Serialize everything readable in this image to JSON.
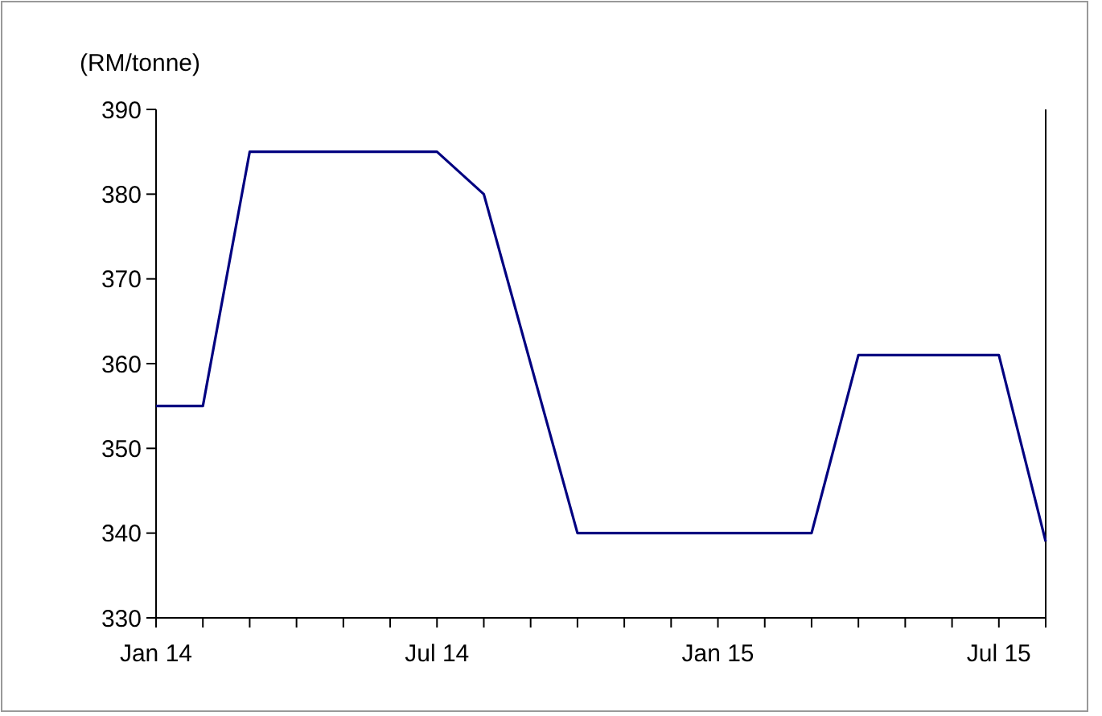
{
  "chart_data": {
    "type": "line",
    "ylabel": "(RM/tonne)",
    "categories": [
      "Jan 14",
      null,
      null,
      null,
      null,
      null,
      "Jul 14",
      null,
      null,
      null,
      null,
      null,
      "Jan 15",
      null,
      null,
      null,
      null,
      null,
      "Jul 15",
      null
    ],
    "series": [
      {
        "color": "#000080",
        "values": [
          355,
          355,
          385,
          385,
          385,
          385,
          385,
          380,
          360,
          340,
          340,
          340,
          340,
          340,
          340,
          361,
          361,
          361,
          361,
          339
        ]
      }
    ],
    "ylim": [
      330,
      390
    ],
    "yticks": [
      330,
      340,
      350,
      360,
      370,
      380,
      390
    ],
    "grid": false,
    "marker": "none",
    "line_style": "solid"
  }
}
